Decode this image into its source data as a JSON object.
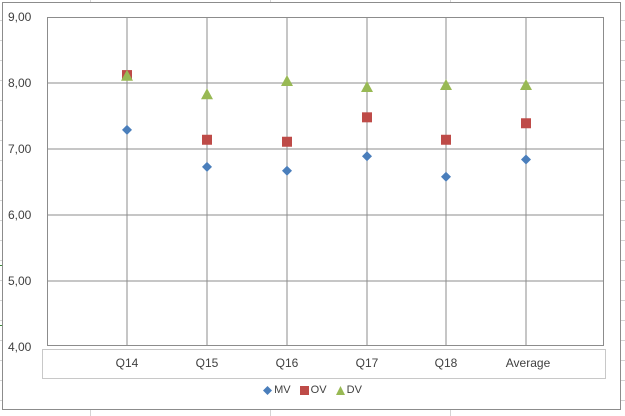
{
  "chart_data": {
    "type": "scatter",
    "title": "",
    "xlabel": "",
    "ylabel": "",
    "categories": [
      "Q14",
      "Q15",
      "Q16",
      "Q17",
      "Q18",
      "Average"
    ],
    "series": [
      {
        "name": "MV",
        "marker": "diamond",
        "color": "#4a7ebb",
        "values": [
          7.29,
          6.73,
          6.67,
          6.89,
          6.58,
          6.84
        ]
      },
      {
        "name": "OV",
        "marker": "square",
        "color": "#be4b48",
        "values": [
          8.12,
          7.14,
          7.11,
          7.48,
          7.14,
          7.39
        ]
      },
      {
        "name": "DV",
        "marker": "triangle",
        "color": "#98b954",
        "values": [
          8.11,
          7.83,
          8.03,
          7.94,
          7.97,
          7.97
        ]
      }
    ],
    "ylim": [
      4,
      9
    ],
    "yticks": [
      "9,00",
      "8,00",
      "7,00",
      "6,00",
      "5,00",
      "4,00"
    ],
    "grid": true,
    "legend_position": "bottom"
  },
  "axis": {
    "y_ticks": [
      "9,00",
      "8,00",
      "7,00",
      "6,00",
      "5,00",
      "4,00"
    ],
    "x_ticks": [
      "Q14",
      "Q15",
      "Q16",
      "Q17",
      "Q18",
      "Average"
    ]
  },
  "legend": {
    "items": [
      {
        "label": "MV",
        "marker": "diamond",
        "color": "#4a7ebb"
      },
      {
        "label": "OV",
        "marker": "square",
        "color": "#be4b48"
      },
      {
        "label": "DV",
        "marker": "triangle",
        "color": "#98b954"
      }
    ]
  }
}
